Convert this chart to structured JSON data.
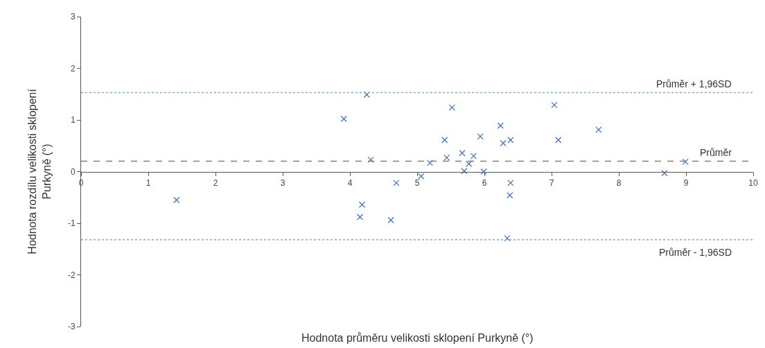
{
  "chart_data": {
    "type": "scatter",
    "xlabel": "Hodnota průměru velikosti sklopení Purkyně (°)",
    "ylabel": "Hodnota rozdílu velikosti sklopení\nPurkyně (°)",
    "x": [
      1.42,
      3.91,
      4.25,
      4.31,
      4.69,
      4.18,
      4.15,
      4.61,
      5.19,
      5.06,
      5.41,
      5.44,
      5.52,
      5.67,
      5.7,
      5.77,
      5.84,
      5.94,
      5.99,
      6.24,
      6.28,
      6.39,
      6.39,
      6.38,
      6.34,
      7.04,
      7.1,
      7.7,
      8.68,
      8.99
    ],
    "series": [
      {
        "color": "#4472c4",
        "values": [
          -0.55,
          1.02,
          1.49,
          0.23,
          -0.22,
          -0.64,
          -0.88,
          -0.94,
          0.17,
          -0.09,
          0.61,
          0.27,
          1.24,
          0.36,
          0.01,
          0.15,
          0.3,
          0.68,
          0.0,
          0.89,
          0.55,
          0.61,
          -0.22,
          -0.46,
          -1.29,
          1.29,
          0.61,
          0.81,
          -0.03,
          0.19
        ]
      }
    ],
    "marker": "cross",
    "xlim": [
      0,
      10
    ],
    "xticks": [
      0,
      1,
      2,
      3,
      4,
      5,
      6,
      7,
      8,
      9,
      10
    ],
    "ylim": [
      -3,
      3
    ],
    "yticks": [
      -3,
      -2,
      -1,
      0,
      1,
      2,
      3
    ],
    "ref_lines": [
      {
        "axis": "y",
        "value": 1.53,
        "label": "Průměr + 1,96SD",
        "color": "#5bb8f0",
        "line_style": "dotted"
      },
      {
        "axis": "y",
        "value": 0.2,
        "label": "Průměr",
        "color": "#7f7f7f",
        "line_style": "dashed"
      },
      {
        "axis": "y",
        "value": -1.32,
        "label": "Průměr - 1,96SD",
        "color": "#5bb8f0",
        "line_style": "dotted"
      }
    ]
  }
}
